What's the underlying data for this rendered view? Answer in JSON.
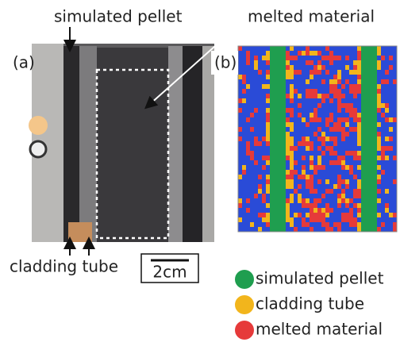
{
  "annotations": {
    "simulated_pellet": "simulated pellet",
    "melted_material": "melted material",
    "cladding_tube": "cladding tube"
  },
  "panels": {
    "a": "(a)",
    "b": "(b)"
  },
  "scale_bar": "2cm",
  "legend": [
    {
      "label": "simulated pellet",
      "color": "#1f9e4f"
    },
    {
      "label": "cladding tube",
      "color": "#f2b51c"
    },
    {
      "label": "melted material",
      "color": "#e63a3a"
    }
  ]
}
